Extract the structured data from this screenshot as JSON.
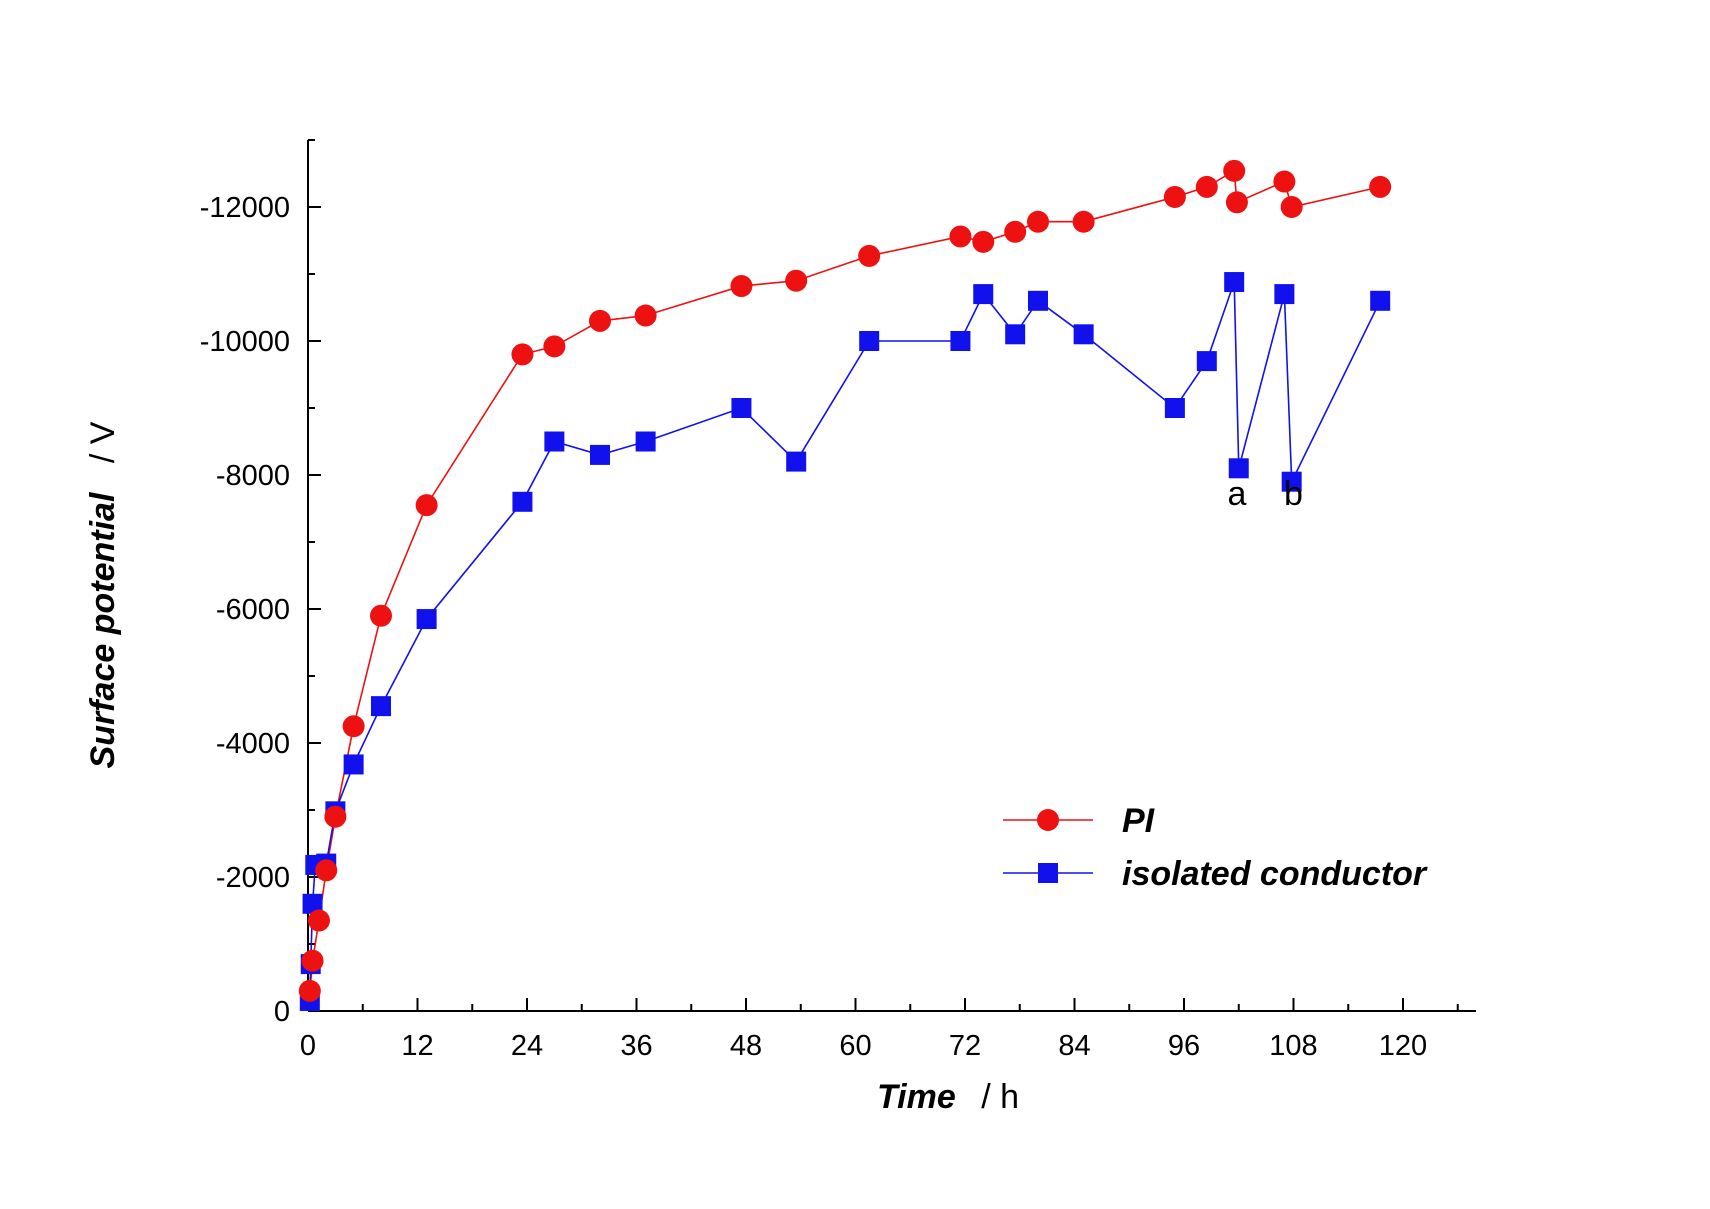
{
  "chart_data": {
    "type": "line",
    "xlabel": {
      "name": "Time",
      "unit": "/ h"
    },
    "ylabel": {
      "name": "Surface potential",
      "unit": "/ V"
    },
    "xlim": [
      0,
      128
    ],
    "ylim": [
      0,
      -13000
    ],
    "x_ticks": [
      0,
      12,
      24,
      36,
      48,
      60,
      72,
      84,
      96,
      108,
      120
    ],
    "y_ticks": [
      0,
      -2000,
      -4000,
      -6000,
      -8000,
      -10000,
      -12000
    ],
    "grid": false,
    "legend_position": "bottom-right",
    "series": [
      {
        "name": "PI",
        "color": "#ee1111",
        "marker": "circle",
        "x": [
          0.2,
          0.5,
          1.2,
          2.0,
          3.0,
          5.0,
          8.0,
          13.0,
          23.5,
          27.0,
          32.0,
          37.0,
          47.5,
          53.5,
          61.5,
          71.5,
          74.0,
          77.5,
          80.0,
          85.0,
          95.0,
          98.5,
          101.5,
          101.8,
          107.0,
          107.8,
          117.5
        ],
        "y": [
          -300,
          -750,
          -1350,
          -2100,
          -2900,
          -4250,
          -5900,
          -7550,
          -9800,
          -9920,
          -10300,
          -10380,
          -10820,
          -10900,
          -11270,
          -11560,
          -11480,
          -11630,
          -11780,
          -11780,
          -12150,
          -12300,
          -12540,
          -12070,
          -12380,
          -12000,
          -12300
        ]
      },
      {
        "name": "isolated conductor",
        "color": "#1111ee",
        "marker": "square",
        "x": [
          0.2,
          0.3,
          0.5,
          0.8,
          2.0,
          3.0,
          5.0,
          8.0,
          13.0,
          23.5,
          27.0,
          32.0,
          37.0,
          47.5,
          53.5,
          61.5,
          71.5,
          74.0,
          77.5,
          80.0,
          85.0,
          95.0,
          98.5,
          101.5,
          102.0,
          107.0,
          107.8,
          117.5
        ],
        "y": [
          -150,
          -700,
          -1600,
          -2180,
          -2200,
          -2980,
          -3680,
          -4550,
          -5850,
          -7600,
          -8500,
          -8300,
          -8500,
          -9000,
          -8200,
          -10000,
          -10000,
          -10700,
          -10100,
          -10600,
          -10100,
          -9000,
          -9700,
          -10880,
          -8100,
          -10700,
          -7900,
          -10600
        ]
      }
    ],
    "annotations": [
      {
        "text": "a",
        "x": 101.8,
        "y": -7550
      },
      {
        "text": "b",
        "x": 108.0,
        "y": -7550
      }
    ]
  }
}
